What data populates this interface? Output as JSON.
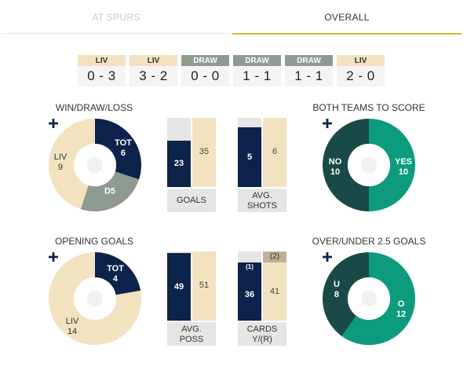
{
  "tabs": [
    {
      "label": "AT SPURS",
      "active": false
    },
    {
      "label": "OVERALL",
      "active": true
    }
  ],
  "results": [
    {
      "label": "LIV",
      "score": "0 - 3",
      "type": "win"
    },
    {
      "label": "LIV",
      "score": "3 - 2",
      "type": "win"
    },
    {
      "label": "DRAW",
      "score": "0 - 0",
      "type": "draw"
    },
    {
      "label": "DRAW",
      "score": "1 - 1",
      "type": "draw"
    },
    {
      "label": "DRAW",
      "score": "1 - 1",
      "type": "draw"
    },
    {
      "label": "LIV",
      "score": "2 - 0",
      "type": "win"
    }
  ],
  "colors": {
    "navy": "#0c234b",
    "cream": "#f2e2c0",
    "grey": "#8f9a93",
    "teal": "#0c9b7d",
    "dark_teal": "#1a4a47",
    "gold": "#d4b92c"
  },
  "win_draw_loss": {
    "title": "WIN/DRAW/LOSS",
    "segments": [
      {
        "label": "TOT",
        "value": 6,
        "color": "#0c234b",
        "text_color": "#ffffff"
      },
      {
        "label": "D",
        "value": 5,
        "color": "#8f9a93",
        "text_color": "#ffffff"
      },
      {
        "label": "LIV",
        "value": 9,
        "color": "#f2e2c0",
        "text_color": "#333333"
      }
    ]
  },
  "opening_goals": {
    "title": "OPENING GOALS",
    "segments": [
      {
        "label": "TOT",
        "value": 4,
        "color": "#0c234b",
        "text_color": "#ffffff"
      },
      {
        "label": "LIV",
        "value": 14,
        "color": "#f2e2c0",
        "text_color": "#333333"
      }
    ]
  },
  "both_teams_to_score": {
    "title": "BOTH TEAMS TO SCORE",
    "segments": [
      {
        "label": "YES",
        "value": 10,
        "color": "#0c9b7d",
        "text_color": "#ffffff"
      },
      {
        "label": "NO",
        "value": 10,
        "color": "#1a4a47",
        "text_color": "#ffffff"
      }
    ]
  },
  "over_under": {
    "title": "OVER/UNDER 2.5 GOALS",
    "segments": [
      {
        "label": "O",
        "value": 12,
        "color": "#0c9b7d",
        "text_color": "#ffffff"
      },
      {
        "label": "U",
        "value": 8,
        "color": "#1a4a47",
        "text_color": "#ffffff"
      }
    ]
  },
  "bars": {
    "goals": {
      "left": "23",
      "right": "35",
      "caption": "GOALS"
    },
    "avg_shots": {
      "left": "5",
      "right": "6",
      "caption_1": "AVG.",
      "caption_2": "SHOTS"
    },
    "avg_poss": {
      "left": "49",
      "right": "51",
      "caption_1": "AVG.",
      "caption_2": "POSS"
    },
    "cards": {
      "left": "36",
      "left_red": "(1)",
      "right": "41",
      "right_red": "(2)",
      "caption_1": "CARDS",
      "caption_2": "Y/(R)"
    }
  },
  "icons": {
    "center": "plus-icon"
  }
}
